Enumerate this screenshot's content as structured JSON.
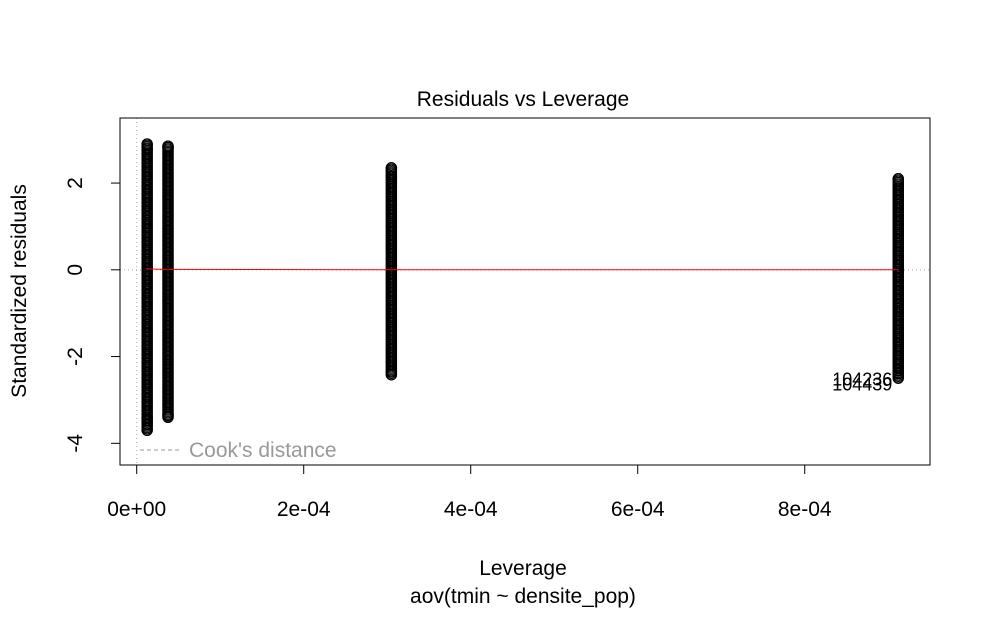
{
  "chart_data": {
    "type": "scatter",
    "title": "Residuals vs Leverage",
    "xlabel": "Leverage",
    "subtitle": "aov(tmin ~ densite_pop)",
    "ylabel": "Standardized residuals",
    "xlim": [
      -2e-05,
      0.00095
    ],
    "ylim": [
      -4.5,
      3.5
    ],
    "x_ticks": [
      0,
      0.0002,
      0.0004,
      0.0006,
      0.0008
    ],
    "x_tick_labels": [
      "0e+00",
      "2e-04",
      "4e-04",
      "6e-04",
      "8e-04"
    ],
    "y_ticks": [
      -4,
      -2,
      0,
      2
    ],
    "y_tick_labels": [
      "-4",
      "-2",
      "0",
      "2"
    ],
    "groups": [
      {
        "leverage": 1.25e-05,
        "residual_min": -3.7,
        "residual_max": 2.9,
        "outliers": [
          -3.7,
          -3.55,
          -3.48,
          -3.42,
          2.78,
          2.9
        ]
      },
      {
        "leverage": 3.75e-05,
        "residual_min": -3.4,
        "residual_max": 2.85,
        "outliers": [
          -3.4,
          -3.35,
          2.82,
          2.85
        ]
      },
      {
        "leverage": 0.000305,
        "residual_min": -2.42,
        "residual_max": 2.35,
        "outliers": [
          -2.42,
          -2.35,
          2.15,
          2.35
        ]
      },
      {
        "leverage": 0.000912,
        "residual_min": -2.5,
        "residual_max": 2.1,
        "outliers": [
          -2.5,
          -2.38,
          -2.32,
          2.1
        ]
      }
    ],
    "smoother": {
      "x": [
        1.25e-05,
        3.75e-05,
        0.000305,
        0.000912
      ],
      "y": [
        0.02,
        0.01,
        0.0,
        0.0
      ],
      "color": "#ff0000"
    },
    "point_labels": [
      {
        "text": "104236",
        "x": 0.000912,
        "y": -2.5
      },
      {
        "text": "104439",
        "x": 0.000912,
        "y": -2.62
      }
    ],
    "reference_lines": {
      "h": 0,
      "v": 0,
      "color": "#aaaaaa"
    },
    "legend": {
      "label": "Cook's distance",
      "placement": "bottom-left",
      "color": "#999999"
    },
    "grid": false
  }
}
